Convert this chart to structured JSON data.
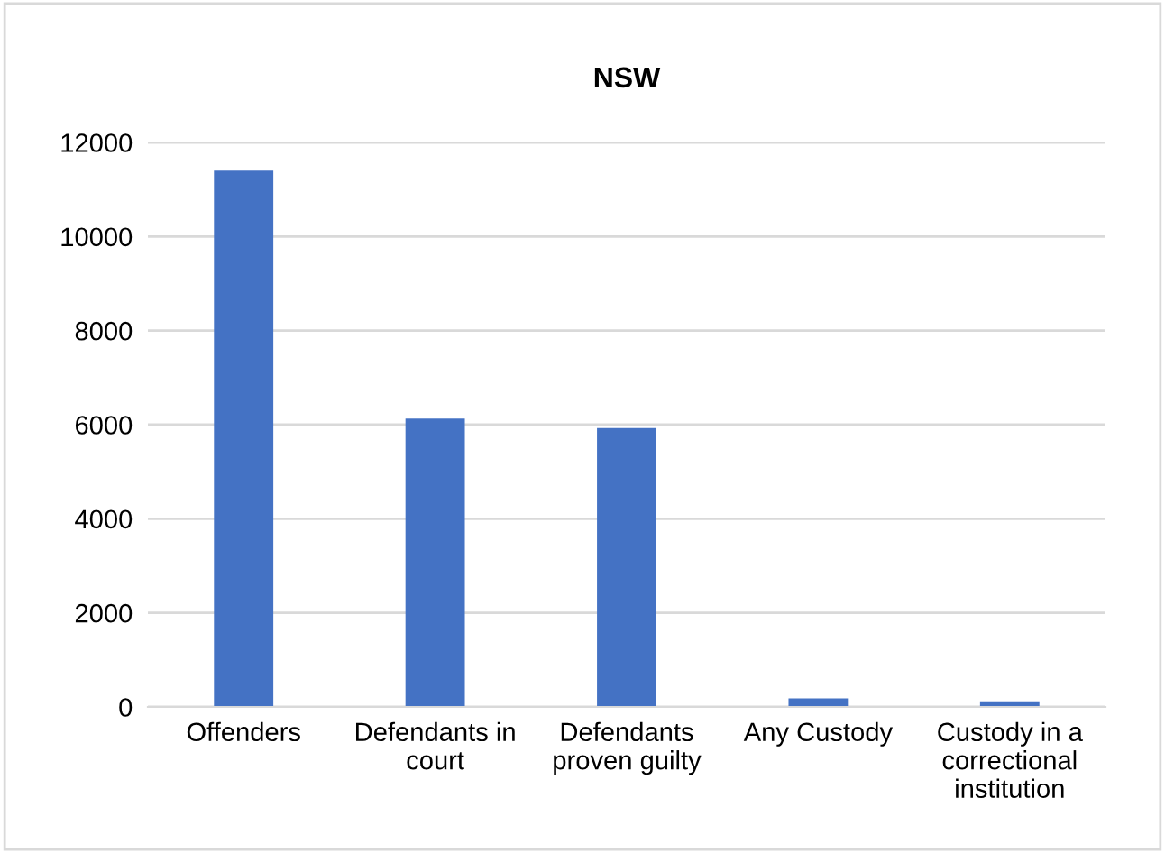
{
  "chart_data": {
    "type": "bar",
    "title": "NSW",
    "categories": [
      "Offenders",
      "Defendants in\ncourt",
      "Defendants\nproven guilty",
      "Any Custody",
      "Custody in a\ncorrectional\ninstitution"
    ],
    "values": [
      11400,
      6130,
      5930,
      180,
      120
    ],
    "color": "#4472c4",
    "ylim": [
      0,
      12000
    ],
    "yticks": [
      0,
      2000,
      4000,
      6000,
      8000,
      10000,
      12000
    ],
    "grid": "y"
  }
}
